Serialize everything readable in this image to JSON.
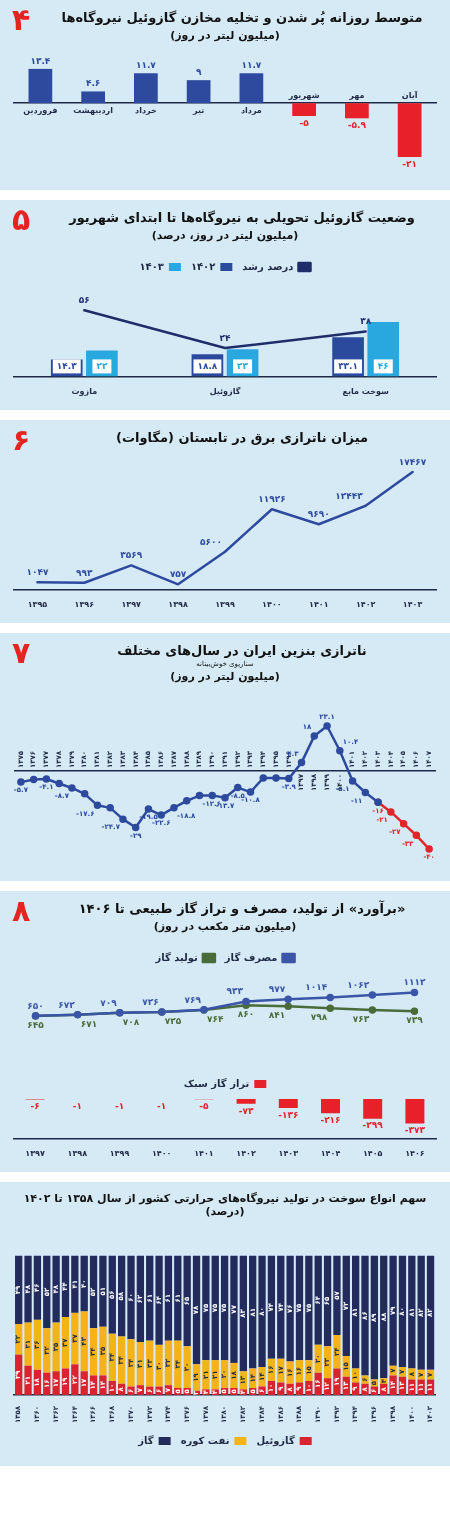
{
  "chart_data": [
    {
      "type": "bar",
      "title": "متوسط روزانه پُر شدن و تخلیه مخازن گازوئیل نیروگاه‌ها",
      "subtitle": "(میلیون لیتر در روز)",
      "annotations": [
        "۴"
      ],
      "categories": [
        "فروردین",
        "اردیبهشت",
        "خرداد",
        "تیر",
        "مرداد",
        "شهریور",
        "مهر",
        "آبان"
      ],
      "values": [
        13.4,
        4.6,
        11.7,
        9,
        11.7,
        -5,
        -5.9,
        -21
      ],
      "colors": [
        "#2e4a9e",
        "#2e4a9e",
        "#2e4a9e",
        "#2e4a9e",
        "#2e4a9e",
        "#e8202a",
        "#e8202a",
        "#e8202a"
      ],
      "value_labels": [
        "۱۳.۴",
        "۴.۶",
        "۱۱.۷",
        "۹",
        "۱۱.۷",
        "-۵",
        "-۵.۹",
        "-۲۱"
      ]
    },
    {
      "type": "bar",
      "title": "وضعیت گازوئیل تحویلی به نیروگاه‌ها تا ابتدای شهریور",
      "subtitle": "(میلیون لیتر در روز، درصد)",
      "annotations": [
        "۵"
      ],
      "legend": "top",
      "categories": [
        "مازوت",
        "گازوئیل",
        "سوخت مایع"
      ],
      "series": [
        {
          "name": "۱۴۰۲",
          "color": "#2b4a9e",
          "values": [
            14.3,
            18.8,
            33.1
          ],
          "value_labels": [
            "۱۴.۳",
            "۱۸.۸",
            "۳۳.۱"
          ]
        },
        {
          "name": "۱۴۰۳",
          "color": "#29a8e0",
          "values": [
            22,
            23,
            46
          ],
          "value_labels": [
            "۲۲",
            "۲۳",
            "۴۶"
          ]
        },
        {
          "name": "درصد رشد",
          "type": "line",
          "color": "#1f2d6b",
          "values": [
            56,
            24,
            38
          ],
          "value_labels": [
            "۵۶",
            "۲۴",
            "۳۸"
          ]
        }
      ]
    },
    {
      "type": "line",
      "title": "میزان ناترازی برق در تابستان (مگاوات)",
      "annotations": [
        "۶"
      ],
      "categories": [
        "۱۳۹۵",
        "۱۳۹۶",
        "۱۳۹۷",
        "۱۳۹۸",
        "۱۳۹۹",
        "۱۴۰۰",
        "۱۴۰۱",
        "۱۴۰۲",
        "۱۴۰۳"
      ],
      "series": [
        {
          "color": "#2e4a9e",
          "values": [
            1047,
            993,
            3569,
            757,
            5600,
            11926,
            9690,
            12443,
            17467
          ],
          "value_labels": [
            "۱۰۴۷",
            "۹۹۳",
            "۳۵۶۹",
            "۷۵۷",
            "۵۶۰۰",
            "۱۱۹۲۶",
            "۹۶۹۰",
            "۱۲۴۴۳",
            "۱۷۴۶۷"
          ]
        }
      ]
    },
    {
      "type": "line",
      "title": "ناترازی بنزین ایران در سال‌های مختلف",
      "subtitle": "(میلیون لیتر در روز)",
      "annotations": [
        "۷",
        "سناریوی خوش‌بینانه"
      ],
      "marker": "circle",
      "categories": [
        "۱۳۷۵",
        "۱۳۷۶",
        "۱۳۷۷",
        "۱۳۷۸",
        "۱۳۷۹",
        "۱۳۸۰",
        "۱۳۸۱",
        "۱۳۸۲",
        "۱۳۸۳",
        "۱۳۸۴",
        "۱۳۸۵",
        "۱۳۸۶",
        "۱۳۸۷",
        "۱۳۸۸",
        "۱۳۸۹",
        "۱۳۹۰",
        "۱۳۹۱",
        "۱۳۹۲",
        "۱۳۹۳",
        "۱۳۹۴",
        "۱۳۹۵",
        "۱۳۹۶",
        "۱۳۹۷",
        "۱۳۹۸",
        "۱۳۹۹",
        "۱۴۰۰",
        "۱۴۰۱",
        "۱۴۰۲",
        "۱۴۰۳",
        "۱۴۰۴",
        "۱۴۰۵",
        "۱۴۰۶",
        "۱۴۰۷"
      ],
      "series": [
        {
          "color": "#2e4a9e",
          "values": [
            -5.7,
            -4.4,
            -4.1,
            -6.4,
            -8.7,
            -11.7,
            -17.6,
            -18.9,
            -24.7,
            -29,
            -19.5,
            -22.6,
            -18.8,
            -15.3,
            -12.6,
            -12.5,
            -13.7,
            -8.5,
            -10.8,
            -3.6,
            -3.6,
            -3.9,
            4.3,
            18,
            23.1,
            10.4,
            -5.1,
            -11,
            -16,
            null,
            null,
            null,
            null
          ],
          "value_labels": [
            "-۵.۷",
            null,
            "-۴.۱",
            null,
            "-۸.۷",
            null,
            "-۱۷.۶",
            null,
            "-۲۴.۷",
            "-۲۹",
            "-۱۹.۵",
            "-۲۲.۶",
            "-۱۸.۸",
            null,
            "-۱۲.۶",
            null,
            "-۱۳.۷",
            "-۸.۵",
            "-۱۰.۸",
            null,
            null,
            "-۳.۹",
            "۴.۳",
            "۱۸",
            "۲۳.۱",
            "۱۰.۴",
            "-۵.۱",
            "-۱۱",
            null,
            null,
            null,
            null,
            null
          ]
        },
        {
          "color": "#e3242b",
          "values": [
            null,
            null,
            null,
            null,
            null,
            null,
            null,
            null,
            null,
            null,
            null,
            null,
            null,
            null,
            null,
            null,
            null,
            null,
            null,
            null,
            null,
            null,
            null,
            null,
            null,
            null,
            null,
            null,
            -16,
            -21,
            -27,
            -33,
            -40
          ],
          "value_labels": [
            null,
            null,
            null,
            null,
            null,
            null,
            null,
            null,
            null,
            null,
            null,
            null,
            null,
            null,
            null,
            null,
            null,
            null,
            null,
            null,
            null,
            null,
            null,
            null,
            null,
            null,
            null,
            null,
            "-۱۶",
            "-۲۱",
            "-۲۷",
            "-۳۳",
            "-۴۰"
          ]
        }
      ]
    },
    {
      "type": "line",
      "title": "«برآورد» از تولید، مصرف و تراز گاز طبیعی تا ۱۴۰۶",
      "subtitle": "(میلیون متر مکعب در روز)",
      "annotations": [
        "۸"
      ],
      "legend": "top",
      "marker": "circle",
      "tick_labels": false,
      "categories": [
        "۱۳۹۷",
        "۱۳۹۸",
        "۱۳۹۹",
        "۱۴۰۰",
        "۱۴۰۱",
        "۱۴۰۲",
        "۱۴۰۳",
        "۱۴۰۴",
        "۱۴۰۵",
        "۱۴۰۶"
      ],
      "series": [
        {
          "name": "مصرف گاز",
          "color": "#3b55a8",
          "values": [
            650,
            672,
            709,
            726,
            769,
            933,
            977,
            1014,
            1062,
            1112
          ],
          "value_labels": [
            "۶۵۰",
            "۶۷۲",
            "۷۰۹",
            "۷۲۶",
            "۷۶۹",
            "۹۳۳",
            "۹۷۷",
            "۱۰۱۴",
            "۱۰۶۲",
            "۱۱۱۲"
          ]
        },
        {
          "name": "تولید گاز",
          "color": "#4a6b3a",
          "values": [
            645,
            671,
            708,
            725,
            764,
            860,
            841,
            798,
            763,
            739
          ],
          "value_labels": [
            "۶۴۵",
            "۶۷۱",
            "۷۰۸",
            "۷۲۵",
            "۷۶۴",
            "۸۶۰",
            "۸۴۱",
            "۷۹۸",
            "۷۶۳",
            "۷۳۹"
          ]
        }
      ]
    },
    {
      "type": "bar",
      "legend": "top",
      "tick_labels": "x",
      "categories": [
        "۱۳۹۷",
        "۱۳۹۸",
        "۱۳۹۹",
        "۱۴۰۰",
        "۱۴۰۱",
        "۱۴۰۲",
        "۱۴۰۳",
        "۱۴۰۴",
        "۱۴۰۵",
        "۱۴۰۶"
      ],
      "series": [
        {
          "name": "تراز گاز سبک",
          "color": "#e8202a",
          "values": [
            -6,
            -1,
            -1,
            -1,
            -5,
            -73,
            -136,
            -216,
            -299,
            -373
          ],
          "value_labels": [
            "-۶",
            "-۱",
            "-۱",
            "-۱",
            "-۵",
            "-۷۳",
            "-۱۳۶",
            "-۲۱۶",
            "-۲۹۹",
            "-۳۷۳"
          ]
        }
      ]
    },
    {
      "type": "bar",
      "title": "سهم انواع سوخت در تولید نیروگاه‌های حرارتی کشور از سال ۱۳۵۸ تا ۱۴۰۲ (درصد)",
      "stacked": true,
      "legend": "bottom",
      "categories": [
        "۱۳۵۸",
        null,
        "۱۳۶۰",
        null,
        "۱۳۶۲",
        null,
        "۱۳۶۴",
        null,
        "۱۳۶۶",
        null,
        "۱۳۶۸",
        null,
        "۱۳۷۰",
        null,
        "۱۳۷۲",
        null,
        "۱۳۷۴",
        null,
        "۱۳۷۶",
        null,
        "۱۳۷۸",
        null,
        "۱۳۸۰",
        null,
        "۱۳۸۲",
        null,
        "۱۳۸۴",
        null,
        "۱۳۸۶",
        null,
        "۱۳۸۸",
        null,
        "۱۳۹۰",
        null,
        "۱۳۹۲",
        null,
        "۱۳۹۴",
        null,
        "۱۳۹۶",
        null,
        "۱۳۹۸",
        null,
        "۱۴۰۰",
        null,
        "۱۴۰۲"
      ],
      "series": [
        {
          "name": "گازوئیل",
          "color": "#d9232e",
          "values": [
            29,
            21,
            18,
            16,
            17,
            19,
            22,
            17,
            14,
            14,
            10,
            8,
            6,
            7,
            6,
            6,
            7,
            5,
            5,
            3,
            4,
            4,
            5,
            5,
            4,
            5,
            6,
            10,
            9,
            8,
            9,
            10,
            16,
            12,
            19,
            13,
            9,
            8,
            6,
            8,
            14,
            13,
            11,
            11,
            11
          ],
          "value_labels": [
            "۲۹",
            "۲۱",
            "۱۸",
            "۱۶",
            "۱۷",
            "۱۹",
            "۲۲",
            "۱۷",
            "۱۴",
            "۱۴",
            "۱۰",
            "۸",
            "۶",
            "۷",
            "۶",
            "۶",
            "۷",
            "۵",
            "۵",
            "۳",
            "۴",
            "۴",
            "۵",
            "۵",
            "۴",
            "۵",
            "۶",
            "۱۰",
            "۹",
            "۸",
            "۹",
            "۱۰",
            "۱۶",
            "۱۲",
            "۱۹",
            "۱۳",
            "۹",
            "۸",
            "۶",
            "۸",
            "۱۴",
            "۱۳",
            "۱۱",
            "۱۱",
            "۱۱"
          ]
        },
        {
          "name": "نفت کوره",
          "color": "#f5b31a",
          "values": [
            22,
            31,
            36,
            32,
            35,
            37,
            37,
            43,
            34,
            35,
            34,
            34,
            34,
            31,
            33,
            30,
            32,
            34,
            30,
            19,
            21,
            21,
            20,
            18,
            13,
            14,
            14,
            16,
            17,
            16,
            16,
            15,
            20,
            23,
            24,
            15,
            10,
            6,
            5,
            4,
            7,
            7,
            8,
            7,
            7
          ],
          "value_labels": [
            "۲۲",
            "۳۱",
            "۳۶",
            "۳۲",
            "۳۵",
            "۳۷",
            "۳۷",
            "۴۳",
            "۳۴",
            "۳۵",
            "۳۴",
            "۳۴",
            "۳۴",
            "۳۱",
            "۳۳",
            "۳۰",
            "۳۲",
            "۳۴",
            "۳۰",
            "۱۹",
            "۲۱",
            "۲۱",
            "۲۰",
            "۱۸",
            "۱۳",
            "۱۴",
            "۱۴",
            "۱۶",
            "۱۷",
            "۱۶",
            "۱۶",
            "۱۵",
            "۲۰",
            "۲۳",
            "۲۴",
            "۱۵",
            "۱۰",
            "۶",
            "۵",
            "۴",
            "۷",
            "۷",
            "۸",
            "۷",
            "۷"
          ]
        },
        {
          "name": "گاز",
          "color": "#232a5c",
          "values": [
            49,
            48,
            46,
            52,
            48,
            44,
            41,
            40,
            52,
            51,
            56,
            58,
            60,
            62,
            61,
            64,
            61,
            61,
            65,
            78,
            75,
            75,
            75,
            77,
            83,
            81,
            80,
            74,
            74,
            76,
            75,
            75,
            64,
            65,
            57,
            72,
            81,
            86,
            89,
            88,
            79,
            80,
            81,
            82,
            82
          ],
          "value_labels": [
            "۴۹",
            "۴۸",
            "۴۶",
            "۵۲",
            "۴۸",
            "۴۴",
            "۴۱",
            "۴۰",
            "۵۲",
            "۵۱",
            "۵۶",
            "۵۸",
            "۶۰",
            "۶۲",
            "۶۱",
            "۶۴",
            "۶۱",
            "۶۱",
            "۶۵",
            "۷۸",
            "۷۵",
            "۷۵",
            "۷۵",
            "۷۷",
            "۸۳",
            "۸۱",
            "۸۰",
            "۷۴",
            "۷۴",
            "۷۶",
            "۷۵",
            "۷۵",
            "۶۴",
            "۶۵",
            "۵۷",
            "۷۲",
            "۸۱",
            "۸۶",
            "۸۹",
            "۸۸",
            "۷۹",
            "۸۰",
            "۸۱",
            "۸۲",
            "۸۲"
          ]
        }
      ]
    }
  ]
}
